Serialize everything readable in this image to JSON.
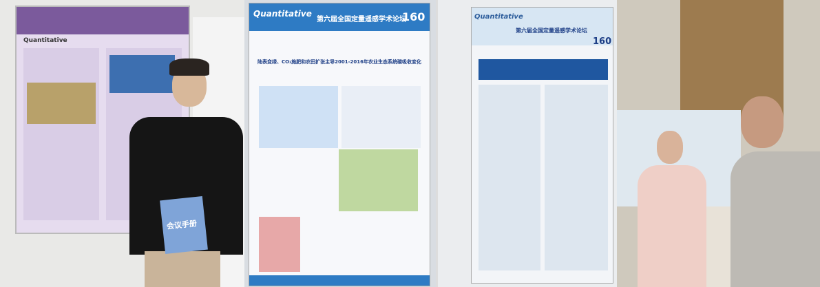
{
  "photos": [
    {
      "booklet": "会议手册",
      "poster": {
        "logo": "Quantitative"
      }
    },
    {
      "poster": {
        "logo": "Quantitative",
        "forum": "第六届全国定量遥感学术论坛",
        "number": "160",
        "title": "陆表变绿、CO₂施肥和农田扩张主导2001-2016年农业生态系统碳吸收变化"
      }
    },
    {
      "poster": {
        "logo": "Quantitative",
        "forum": "第六届全国定量遥感学术论坛",
        "number": "160"
      }
    }
  ]
}
